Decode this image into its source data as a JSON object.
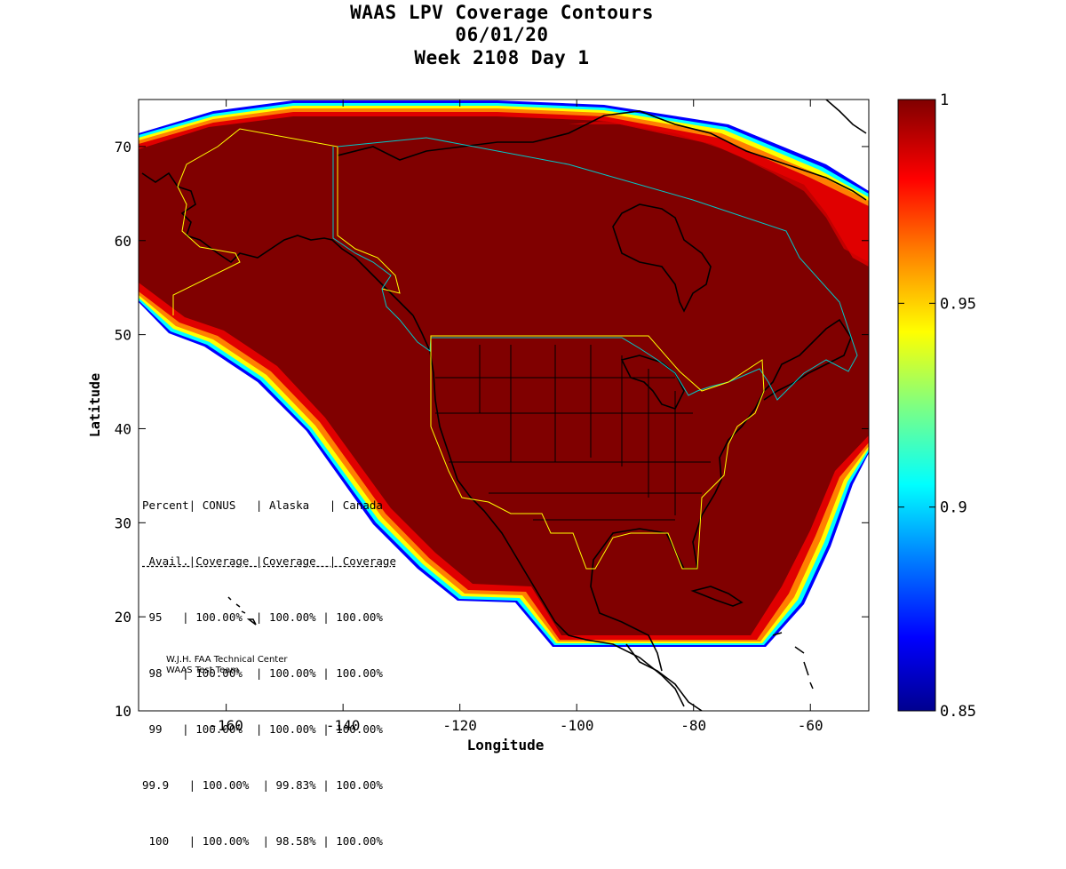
{
  "title": {
    "line1": "WAAS LPV Coverage Contours",
    "line2": "06/01/20",
    "line3": "Week 2108 Day 1"
  },
  "axes": {
    "xlabel": "Longitude",
    "ylabel": "Latitude",
    "xlim": [
      -175,
      -50
    ],
    "ylim": [
      10,
      75
    ],
    "xticks": [
      -160,
      -140,
      -120,
      -100,
      -80,
      -60
    ],
    "yticks": [
      10,
      20,
      30,
      40,
      50,
      60,
      70
    ]
  },
  "colorbar": {
    "range": [
      0.85,
      1.0
    ],
    "ticks": [
      "1",
      "0.95",
      "0.9",
      "0.85"
    ],
    "tick_values": [
      1.0,
      0.95,
      0.9,
      0.85
    ],
    "colormap": [
      "#00008f",
      "#0000ff",
      "#0080ff",
      "#00ffff",
      "#80ff80",
      "#ffff00",
      "#ff8000",
      "#ff0000",
      "#800000"
    ]
  },
  "colors": {
    "coverage": "#800000",
    "region_alaska": "#ffff00",
    "region_canada": "#00c8c8",
    "coast": "#000000"
  },
  "table": {
    "header1": "Percent| CONUS   | Alaska   | Canada",
    "header2": " Avail.|Coverage |Coverage  | Coverage",
    "rows": [
      " 95   | 100.00%  | 100.00% | 100.00%",
      " 98   | 100.00%  | 100.00% | 100.00%",
      " 99   | 100.00%  | 100.00% | 100.00%",
      "99.9   | 100.00%  | 99.83% | 100.00%",
      " 100   | 100.00%  | 98.58% | 100.00%"
    ]
  },
  "stats": [
    {
      "percent": "95",
      "conus": "100.00%",
      "alaska": "100.00%",
      "canada": "100.00%"
    },
    {
      "percent": "98",
      "conus": "100.00%",
      "alaska": "100.00%",
      "canada": "100.00%"
    },
    {
      "percent": "99",
      "conus": "100.00%",
      "alaska": "100.00%",
      "canada": "100.00%"
    },
    {
      "percent": "99.9",
      "conus": "100.00%",
      "alaska": "99.83%",
      "canada": "100.00%"
    },
    {
      "percent": "100",
      "conus": "100.00%",
      "alaska": "98.58%",
      "canada": "100.00%"
    }
  ],
  "credit": {
    "line1": "W.J.H. FAA Technical Center",
    "line2": "WAAS Test Team"
  }
}
